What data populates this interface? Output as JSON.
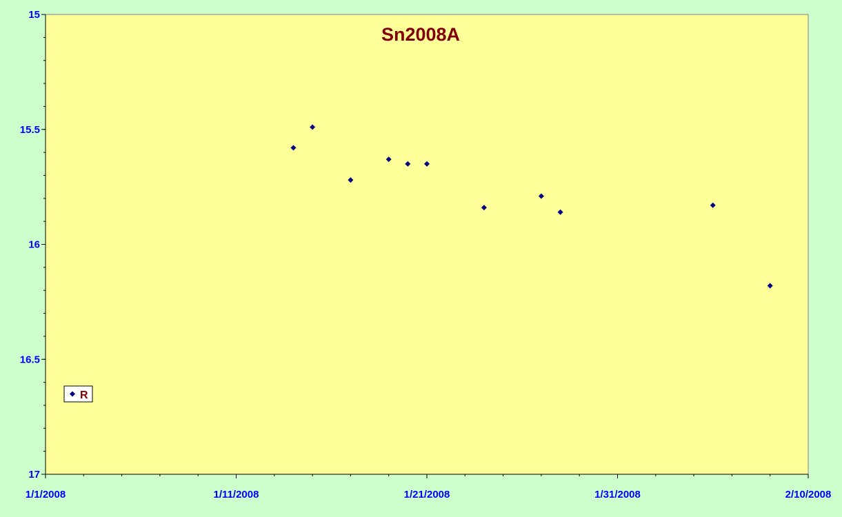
{
  "chart_data": {
    "type": "scatter",
    "title": "Sn2008A",
    "xlabel": "",
    "ylabel": "",
    "x_axis": {
      "min": "2008-01-01",
      "max": "2008-02-10",
      "major_ticks": [
        "1/1/2008",
        "1/11/2008",
        "1/21/2008",
        "1/31/2008",
        "2/10/2008"
      ]
    },
    "y_axis": {
      "min": 15,
      "max": 17,
      "reversed": true,
      "major_ticks": [
        "15",
        "15.5",
        "16",
        "16.5",
        "17"
      ]
    },
    "grid": false,
    "legend": {
      "position": "bottom-left",
      "entries": [
        "R"
      ]
    },
    "series": [
      {
        "name": "R",
        "color": "#000080",
        "marker": "diamond",
        "points": [
          {
            "x": "2008-01-14",
            "y": 15.58
          },
          {
            "x": "2008-01-15",
            "y": 15.49
          },
          {
            "x": "2008-01-17",
            "y": 15.72
          },
          {
            "x": "2008-01-19",
            "y": 15.63
          },
          {
            "x": "2008-01-20",
            "y": 15.65
          },
          {
            "x": "2008-01-21",
            "y": 15.65
          },
          {
            "x": "2008-01-24",
            "y": 15.84
          },
          {
            "x": "2008-01-27",
            "y": 15.79
          },
          {
            "x": "2008-01-28",
            "y": 15.86
          },
          {
            "x": "2008-02-05",
            "y": 15.83
          },
          {
            "x": "2008-02-08",
            "y": 16.18
          }
        ]
      }
    ],
    "colors": {
      "background": "#ccffcc",
      "plot_area": "#ffff99",
      "title": "#800000",
      "tick_labels": "#0000ff",
      "marker": "#000080"
    }
  }
}
